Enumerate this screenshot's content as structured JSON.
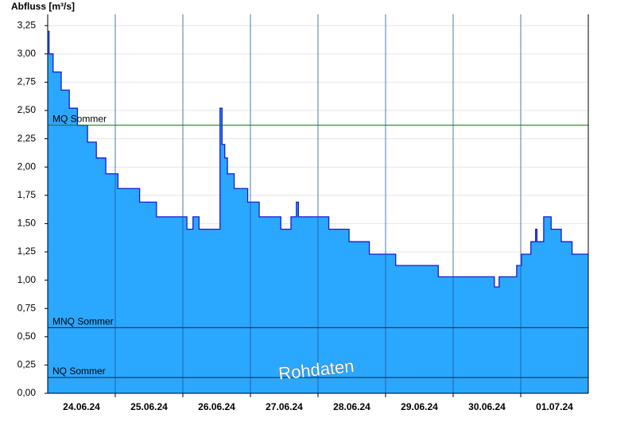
{
  "chart_data": {
    "type": "area",
    "step": "post",
    "ylabel": "Abfluss [m³/s]",
    "annotation": "Rohdaten",
    "x": [
      0,
      0.02,
      0.08,
      0.2,
      0.32,
      0.44,
      0.59,
      0.72,
      0.86,
      1.04,
      1.36,
      1.61,
      2.06,
      2.15,
      2.24,
      2.55,
      2.58,
      2.62,
      2.66,
      2.76,
      2.96,
      3.13,
      3.45,
      3.6,
      3.68,
      3.71,
      4.16,
      4.46,
      4.76,
      5.15,
      5.78,
      6.61,
      6.68,
      6.94,
      7.01,
      7.15,
      7.22,
      7.24,
      7.34,
      7.45,
      7.6,
      7.76,
      8
    ],
    "values": [
      3.2,
      3.0,
      2.84,
      2.68,
      2.52,
      2.37,
      2.22,
      2.08,
      1.94,
      1.81,
      1.69,
      1.56,
      1.45,
      1.56,
      1.45,
      2.52,
      2.2,
      2.08,
      1.94,
      1.81,
      1.69,
      1.56,
      1.45,
      1.56,
      1.69,
      1.56,
      1.45,
      1.34,
      1.23,
      1.13,
      1.03,
      0.94,
      1.03,
      1.13,
      1.23,
      1.34,
      1.45,
      1.34,
      1.56,
      1.45,
      1.34,
      1.23,
      1.23
    ],
    "color": "#2aa7ff",
    "line_color": "#1a1ad0",
    "xlim": [
      0,
      8
    ],
    "xticks": [
      {
        "value": 0.5,
        "label": "24.06.24"
      },
      {
        "value": 1.5,
        "label": "25.06.24"
      },
      {
        "value": 2.5,
        "label": "26.06.24"
      },
      {
        "value": 3.5,
        "label": "27.06.24"
      },
      {
        "value": 4.5,
        "label": "28.06.24"
      },
      {
        "value": 5.5,
        "label": "29.06.24"
      },
      {
        "value": 6.5,
        "label": "30.06.24"
      },
      {
        "value": 7.5,
        "label": "01.07.24"
      }
    ],
    "x_gridlines": [
      1,
      2,
      3,
      4,
      5,
      6,
      7
    ],
    "ylim": [
      0,
      3.35
    ],
    "yticks": [
      {
        "value": 0,
        "label": "0,00"
      },
      {
        "value": 0.25,
        "label": "0,25"
      },
      {
        "value": 0.5,
        "label": "0,50"
      },
      {
        "value": 0.75,
        "label": "0,75"
      },
      {
        "value": 1,
        "label": "1,00"
      },
      {
        "value": 1.25,
        "label": "1,25"
      },
      {
        "value": 1.5,
        "label": "1,50"
      },
      {
        "value": 1.75,
        "label": "1,75"
      },
      {
        "value": 2,
        "label": "2,00"
      },
      {
        "value": 2.25,
        "label": "2,25"
      },
      {
        "value": 2.5,
        "label": "2,50"
      },
      {
        "value": 2.75,
        "label": "2,75"
      },
      {
        "value": 3,
        "label": "3,00"
      },
      {
        "value": 3.25,
        "label": "3,25"
      }
    ],
    "grid": true,
    "reference_lines": [
      {
        "label": "MQ Sommer",
        "value": 2.37,
        "color": "#1a7a1a"
      },
      {
        "label": "MNQ Sommer",
        "value": 0.58,
        "color": "#222222"
      },
      {
        "label": "NQ Sommer",
        "value": 0.14,
        "color": "#222222"
      }
    ]
  }
}
